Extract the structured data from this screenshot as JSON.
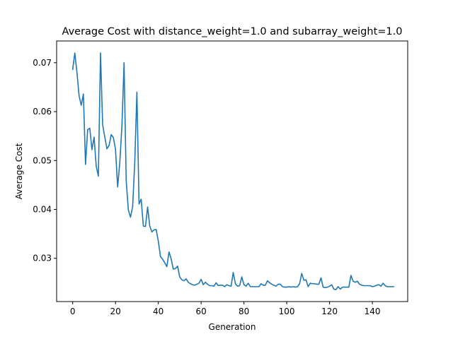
{
  "chart_data": {
    "type": "line",
    "title": "Average Cost with distance_weight=1.0 and subarray_weight=1.0",
    "xlabel": "Generation",
    "ylabel": "Average Cost",
    "xlim": [
      -7.5,
      156.5
    ],
    "ylim": [
      0.02115,
      0.07445
    ],
    "xticks": [
      0,
      20,
      40,
      60,
      80,
      100,
      120,
      140
    ],
    "yticks": [
      0.03,
      0.04,
      0.05,
      0.06,
      0.07
    ],
    "ytick_labels": [
      "0.03",
      "0.04",
      "0.05",
      "0.06",
      "0.07"
    ],
    "grid": false,
    "legend": "none",
    "color": "#1f77b4",
    "series": [
      {
        "values": [
          0.0686,
          0.072,
          0.068,
          0.0632,
          0.0613,
          0.0636,
          0.0492,
          0.0563,
          0.0566,
          0.0522,
          0.0548,
          0.0488,
          0.0468,
          0.072,
          0.0573,
          0.0548,
          0.0524,
          0.0531,
          0.0553,
          0.0547,
          0.0523,
          0.0446,
          0.0495,
          0.057,
          0.07,
          0.0459,
          0.0399,
          0.0384,
          0.0405,
          0.0496,
          0.064,
          0.0411,
          0.0421,
          0.0366,
          0.0365,
          0.0405,
          0.0366,
          0.0354,
          0.0358,
          0.0359,
          0.0335,
          0.0304,
          0.0298,
          0.0291,
          0.0283,
          0.0313,
          0.0299,
          0.0278,
          0.0279,
          0.0284,
          0.0262,
          0.0256,
          0.0254,
          0.0258,
          0.0251,
          0.0248,
          0.0246,
          0.0245,
          0.0247,
          0.0249,
          0.0257,
          0.0246,
          0.0251,
          0.0247,
          0.0244,
          0.0244,
          0.0243,
          0.025,
          0.0244,
          0.0245,
          0.0245,
          0.0242,
          0.0246,
          0.0244,
          0.0243,
          0.0271,
          0.0248,
          0.0243,
          0.0244,
          0.0262,
          0.0246,
          0.0243,
          0.0249,
          0.0242,
          0.0242,
          0.0242,
          0.0242,
          0.0242,
          0.0248,
          0.0245,
          0.0245,
          0.0254,
          0.025,
          0.0247,
          0.0245,
          0.0243,
          0.0247,
          0.0247,
          0.0242,
          0.0241,
          0.0241,
          0.0242,
          0.0241,
          0.0242,
          0.0241,
          0.0242,
          0.0248,
          0.0269,
          0.0255,
          0.0256,
          0.0242,
          0.0249,
          0.0248,
          0.0248,
          0.0247,
          0.0247,
          0.026,
          0.0241,
          0.024,
          0.0241,
          0.0243,
          0.0246,
          0.0237,
          0.0236,
          0.0242,
          0.0237,
          0.0241,
          0.0241,
          0.0241,
          0.0241,
          0.0265,
          0.0253,
          0.0251,
          0.0253,
          0.0247,
          0.0245,
          0.0244,
          0.0244,
          0.0244,
          0.0244,
          0.0242,
          0.0243,
          0.0245,
          0.0246,
          0.0243,
          0.0249,
          0.0244,
          0.0242,
          0.0242,
          0.0242,
          0.0242
        ]
      }
    ]
  }
}
